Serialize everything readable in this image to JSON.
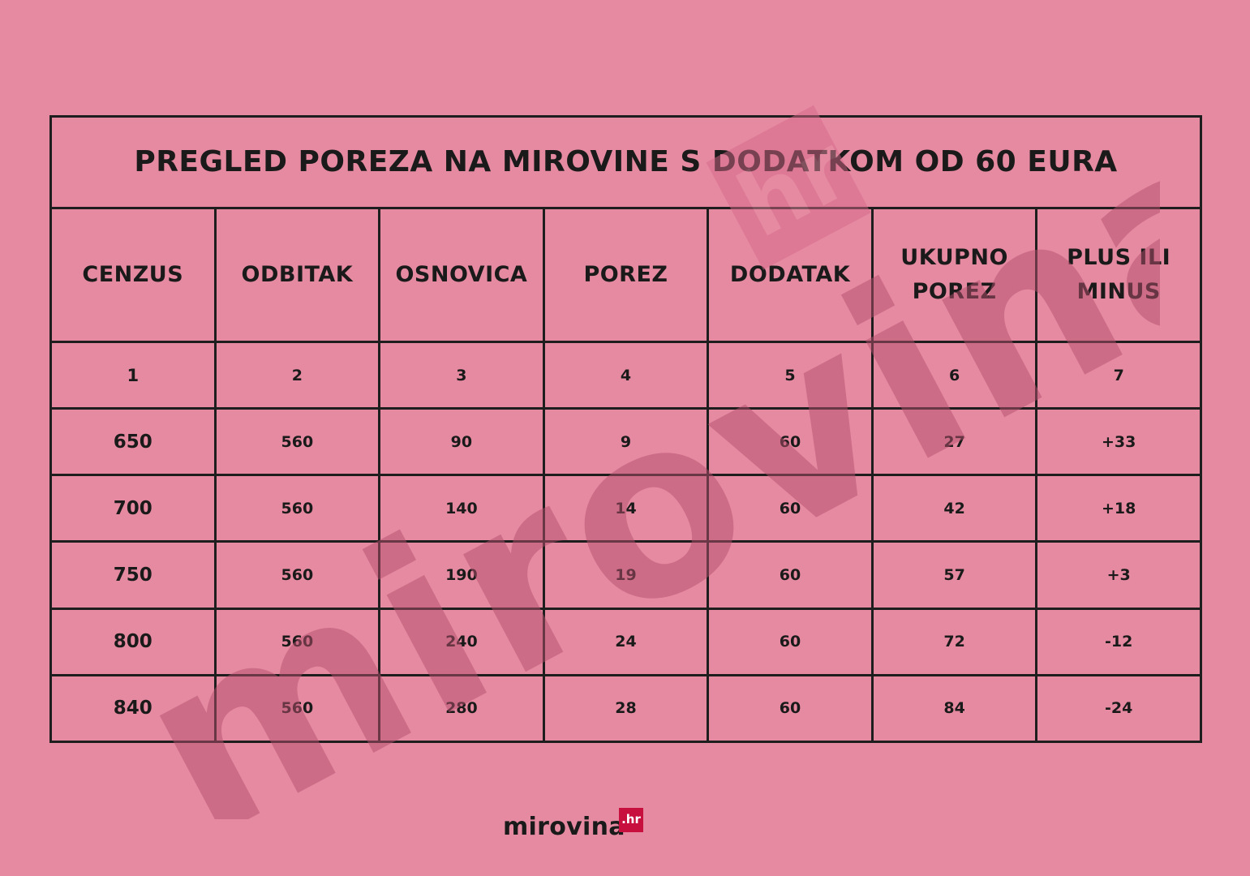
{
  "table": {
    "title": "PREGLED POREZA NA MIROVINE S DODATKOM OD 60 EURA",
    "headers": [
      [
        "CENZUS"
      ],
      [
        "ODBITAK"
      ],
      [
        "OSNOVICA"
      ],
      [
        "POREZ"
      ],
      [
        "DODATAK"
      ],
      [
        "UKUPNO",
        "POREZ"
      ],
      [
        "PLUS ILI",
        "MINUS"
      ]
    ],
    "column_numbers": [
      "1",
      "2",
      "3",
      "4",
      "5",
      "6",
      "7"
    ],
    "rows": [
      [
        "650",
        "560",
        "90",
        "9",
        "60",
        "27",
        "+33"
      ],
      [
        "700",
        "560",
        "140",
        "14",
        "60",
        "42",
        "+18"
      ],
      [
        "750",
        "560",
        "190",
        "19",
        "60",
        "57",
        "+3"
      ],
      [
        "800",
        "560",
        "240",
        "24",
        "60",
        "72",
        "-12"
      ],
      [
        "840",
        "560",
        "280",
        "28",
        "60",
        "84",
        "-24"
      ]
    ]
  },
  "watermark": {
    "brand": "mirovina",
    "suffix": "hr"
  },
  "footer": {
    "brand": "mirovina",
    "badge": ".hr"
  },
  "colors": {
    "background": "#e68aa1",
    "border": "#1e1e1e",
    "badge": "#c8103e",
    "watermark": "#b5506e"
  }
}
